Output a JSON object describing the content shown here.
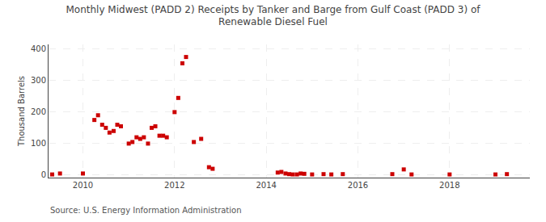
{
  "chart_data": {
    "type": "scatter",
    "title": "Monthly Midwest (PADD 2) Receipts by Tanker and Barge from Gulf Coast (PADD 3) of\nRenewable Diesel Fuel",
    "ylabel": "Thousand Barrels",
    "annotations": [
      "Source: U.S. Energy Information Administration"
    ],
    "color": "#cc0000",
    "marker": "square",
    "grid": true,
    "xlim": [
      2009.25,
      2019.75
    ],
    "ylim": [
      -8,
      415
    ],
    "xticks": [
      2010,
      2012,
      2014,
      2016,
      2018
    ],
    "yticks": [
      0,
      100,
      200,
      300,
      400
    ],
    "x": [
      2009.33,
      2009.5,
      2010.0,
      2010.25,
      2010.33,
      2010.42,
      2010.5,
      2010.58,
      2010.67,
      2010.75,
      2010.83,
      2011.0,
      2011.08,
      2011.17,
      2011.25,
      2011.33,
      2011.42,
      2011.5,
      2011.58,
      2011.67,
      2011.75,
      2011.83,
      2012.0,
      2012.08,
      2012.17,
      2012.25,
      2012.42,
      2012.58,
      2012.75,
      2012.83,
      2014.25,
      2014.33,
      2014.42,
      2014.5,
      2014.58,
      2014.67,
      2014.75,
      2014.83,
      2015.0,
      2015.25,
      2015.42,
      2015.67,
      2016.75,
      2017.0,
      2017.17,
      2018.0,
      2019.0,
      2019.25
    ],
    "values": [
      2,
      5,
      5,
      175,
      190,
      160,
      150,
      135,
      140,
      160,
      155,
      100,
      105,
      120,
      115,
      120,
      100,
      150,
      155,
      125,
      125,
      120,
      200,
      245,
      355,
      375,
      105,
      115,
      25,
      20,
      8,
      10,
      5,
      3,
      2,
      2,
      5,
      4,
      2,
      3,
      2,
      3,
      3,
      18,
      2,
      2,
      2,
      3
    ]
  }
}
